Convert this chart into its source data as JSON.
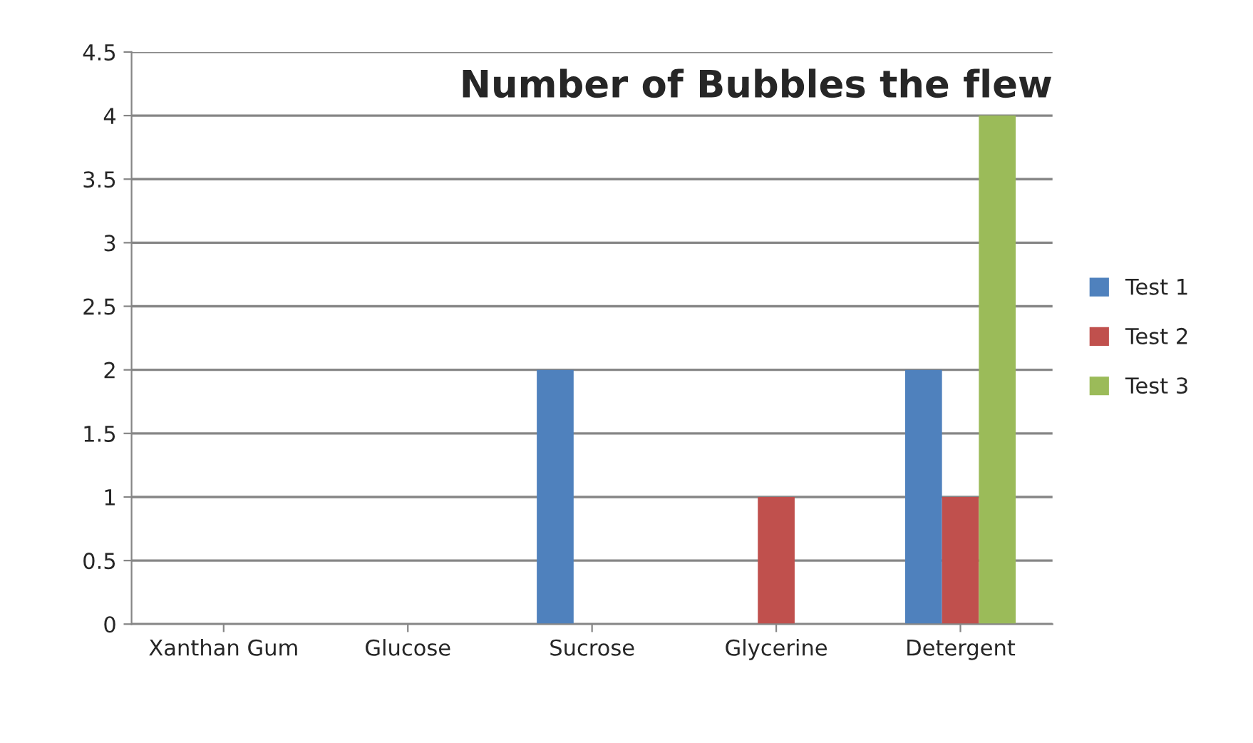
{
  "chart_data": {
    "type": "bar",
    "title": "Number of Bubbles the flew",
    "categories": [
      "Xanthan Gum",
      "Glucose",
      "Sucrose",
      "Glycerine",
      "Detergent"
    ],
    "series": [
      {
        "name": "Test 1",
        "color": "#4f81bd",
        "values": [
          0,
          0,
          2,
          0,
          2
        ]
      },
      {
        "name": "Test 2",
        "color": "#c0504d",
        "values": [
          0,
          0,
          0,
          1,
          1
        ]
      },
      {
        "name": "Test 3",
        "color": "#9bbb59",
        "values": [
          0,
          0,
          0,
          0,
          4
        ]
      }
    ],
    "ylim": [
      0,
      4.5
    ],
    "yticks": [
      0,
      0.5,
      1,
      1.5,
      2,
      2.5,
      3,
      3.5,
      4,
      4.5
    ],
    "grid": "y",
    "legend": "right"
  }
}
